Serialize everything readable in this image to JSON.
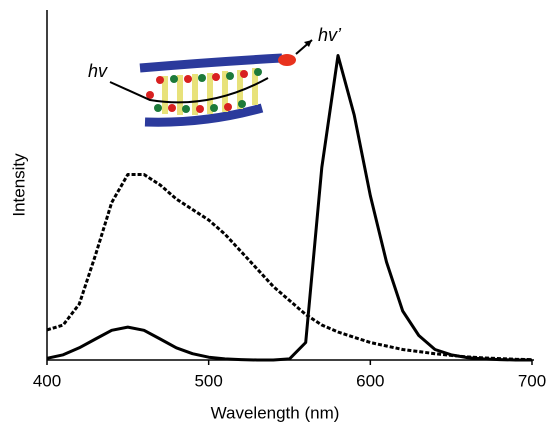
{
  "chart_data": {
    "type": "line",
    "xlabel": "Wavelength (nm)",
    "ylabel": "Intensity",
    "annotations": [
      "hv",
      "hv’"
    ],
    "x": [
      400,
      410,
      420,
      430,
      440,
      450,
      460,
      470,
      480,
      490,
      500,
      510,
      520,
      530,
      540,
      550,
      560,
      570,
      580,
      590,
      600,
      610,
      620,
      630,
      640,
      650,
      660,
      670,
      680,
      690,
      700
    ],
    "series": [
      {
        "color": "#000000",
        "style": "solid",
        "values": [
          0.5,
          1.5,
          3.5,
          6,
          8.5,
          9.4,
          8.5,
          6,
          3.5,
          1.8,
          0.8,
          0.3,
          0.1,
          0,
          0,
          0.3,
          5,
          55,
          87,
          70,
          47,
          28,
          14,
          7,
          3,
          1.5,
          0.7,
          0.3,
          0.1,
          0,
          0
        ]
      },
      {
        "color": "#000000",
        "style": "dashed",
        "values": [
          8.6,
          10,
          16,
          30,
          45,
          53,
          53,
          50,
          46,
          43,
          40,
          36,
          31,
          26,
          21,
          17,
          13,
          10,
          8,
          6.5,
          5,
          4,
          3,
          2.4,
          1.8,
          1.3,
          0.9,
          0.6,
          0.4,
          0.2,
          0.1
        ]
      }
    ],
    "xlim": [
      400,
      700
    ],
    "xticks": [
      400,
      500,
      600,
      700
    ],
    "ylim": [
      0,
      100
    ]
  }
}
